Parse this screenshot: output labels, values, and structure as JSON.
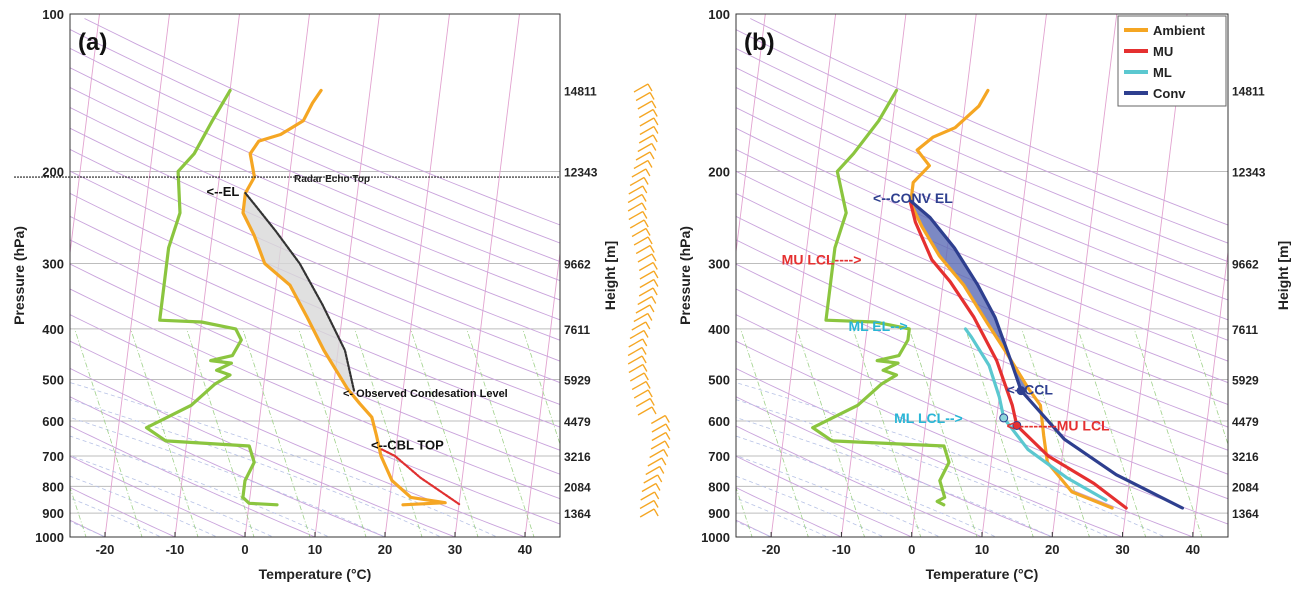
{
  "chart_data": [
    {
      "type": "line",
      "panel_label": "(a)",
      "xlabel": "Temperature (°C)",
      "ylabel": "Pressure (hPa)",
      "y2label": "Height [m]",
      "xlim": [
        -25,
        45
      ],
      "ylim": [
        100,
        1000
      ],
      "y_scale": "log",
      "x_ticks": [
        -20,
        -10,
        0,
        10,
        20,
        30,
        40
      ],
      "y_ticks": [
        100,
        200,
        300,
        400,
        500,
        600,
        700,
        800,
        900,
        1000
      ],
      "height_ticks": [
        {
          "p": 140,
          "label": "14811"
        },
        {
          "p": 200,
          "label": "12343"
        },
        {
          "p": 300,
          "label": "9662"
        },
        {
          "p": 400,
          "label": "7611"
        },
        {
          "p": 500,
          "label": "5929"
        },
        {
          "p": 600,
          "label": "4479"
        },
        {
          "p": 700,
          "label": "3216"
        },
        {
          "p": 800,
          "label": "2084"
        },
        {
          "p": 900,
          "label": "1364"
        }
      ],
      "series": [
        {
          "key": "temperature",
          "color": "#F5A623",
          "points": [
            [
              22,
              868
            ],
            [
              28,
              860
            ],
            [
              23,
              840
            ],
            [
              20,
              780
            ],
            [
              18,
              700
            ],
            [
              17,
              640
            ],
            [
              16,
              590
            ],
            [
              14,
              555
            ],
            [
              12,
              520
            ],
            [
              8,
              440
            ],
            [
              5,
              380
            ],
            [
              2,
              330
            ],
            [
              -2,
              300
            ],
            [
              -4,
              265
            ],
            [
              -6,
              240
            ],
            [
              -6,
              220
            ],
            [
              -5,
              205
            ],
            [
              -6,
              185
            ],
            [
              -5,
              175
            ],
            [
              -2,
              170
            ],
            [
              1,
              160
            ],
            [
              2,
              148
            ],
            [
              3,
              140
            ]
          ]
        },
        {
          "key": "dewpoint",
          "color": "#8BC53F",
          "points": [
            [
              4,
              868
            ],
            [
              0,
              862
            ],
            [
              -1,
              840
            ],
            [
              -1,
              780
            ],
            [
              0,
              720
            ],
            [
              -1,
              670
            ],
            [
              -13,
              655
            ],
            [
              -16,
              618
            ],
            [
              -10,
              560
            ],
            [
              -7,
              510
            ],
            [
              -5,
              490
            ],
            [
              -7,
              480
            ],
            [
              -5,
              465
            ],
            [
              -8,
              460
            ],
            [
              -5,
              450
            ],
            [
              -4,
              420
            ],
            [
              -5,
              400
            ],
            [
              -10,
              388
            ],
            [
              -16,
              385
            ],
            [
              -16,
              340
            ],
            [
              -16,
              280
            ],
            [
              -15,
              240
            ],
            [
              -16,
              200
            ],
            [
              -14,
              185
            ],
            [
              -12,
              160
            ],
            [
              -10,
              140
            ]
          ]
        },
        {
          "key": "parcel",
          "color": "#333333",
          "dashed": true,
          "points": [
            [
              13,
              525
            ],
            [
              11,
              440
            ],
            [
              7,
              360
            ],
            [
              3,
              300
            ],
            [
              -1,
              260
            ],
            [
              -4,
              235
            ],
            [
              -6,
              220
            ]
          ]
        },
        {
          "key": "cbl",
          "color": "#E03030",
          "dashed": true,
          "points": [
            [
              30,
              865
            ],
            [
              24,
              770
            ],
            [
              20,
              700
            ],
            [
              18,
              680
            ]
          ]
        }
      ],
      "shade": {
        "color": "#d8d8d8"
      },
      "annotations": [
        {
          "text": "Radar Echo Top",
          "p": 205,
          "x": 7,
          "color": "#222222",
          "size": 10
        },
        {
          "text": "<--EL",
          "p": 218,
          "x": -5.5,
          "color": "#111111",
          "size": 13
        },
        {
          "text": "<- Observed Condesation Level",
          "p": 528,
          "x": 14,
          "color": "#111111",
          "size": 11
        },
        {
          "text": "<--CBL TOP",
          "p": 665,
          "x": 18,
          "color": "#111111",
          "size": 13
        }
      ],
      "echo_top_p": 205
    },
    {
      "type": "line",
      "panel_label": "(b)",
      "xlabel": "Temperature (°C)",
      "ylabel": "Pressure (hPa)",
      "y2label": "Height [m]",
      "xlim": [
        -25,
        45
      ],
      "ylim": [
        100,
        1000
      ],
      "y_scale": "log",
      "x_ticks": [
        -20,
        -10,
        0,
        10,
        20,
        30,
        40
      ],
      "y_ticks": [
        100,
        200,
        300,
        400,
        500,
        600,
        700,
        800,
        900,
        1000
      ],
      "height_ticks": [
        {
          "p": 140,
          "label": "14811"
        },
        {
          "p": 200,
          "label": "12343"
        },
        {
          "p": 300,
          "label": "9662"
        },
        {
          "p": 400,
          "label": "7611"
        },
        {
          "p": 500,
          "label": "5929"
        },
        {
          "p": 600,
          "label": "4479"
        },
        {
          "p": 700,
          "label": "3216"
        },
        {
          "p": 800,
          "label": "2084"
        },
        {
          "p": 900,
          "label": "1364"
        }
      ],
      "legend": [
        "Ambient",
        "MU",
        "ML",
        "Conv"
      ],
      "legend_position": "top-right",
      "series": [
        {
          "key": "temperature",
          "name": "Ambient",
          "color": "#F5A623",
          "points": [
            [
              28,
              880
            ],
            [
              22,
              820
            ],
            [
              18,
              720
            ],
            [
              17,
              640
            ],
            [
              16,
              560
            ],
            [
              14,
              520
            ],
            [
              10,
              440
            ],
            [
              7,
              390
            ],
            [
              3,
              330
            ],
            [
              -1,
              290
            ],
            [
              -4,
              255
            ],
            [
              -6,
              230
            ],
            [
              -6,
              210
            ],
            [
              -4,
              195
            ],
            [
              -6,
              182
            ],
            [
              -4,
              172
            ],
            [
              -1,
              165
            ],
            [
              2,
              150
            ],
            [
              3,
              140
            ]
          ]
        },
        {
          "key": "dewpoint",
          "color": "#8BC53F",
          "points": [
            [
              4,
              868
            ],
            [
              3,
              855
            ],
            [
              4,
              840
            ],
            [
              3,
              780
            ],
            [
              4,
              720
            ],
            [
              3,
              670
            ],
            [
              -13,
              655
            ],
            [
              -16,
              618
            ],
            [
              -10,
              560
            ],
            [
              -7,
              510
            ],
            [
              -5,
              490
            ],
            [
              -7,
              480
            ],
            [
              -5,
              465
            ],
            [
              -8,
              460
            ],
            [
              -5,
              450
            ],
            [
              -4,
              420
            ],
            [
              -4,
              400
            ],
            [
              -9,
              388
            ],
            [
              -16,
              385
            ],
            [
              -16,
              330
            ],
            [
              -16,
              280
            ],
            [
              -15,
              240
            ],
            [
              -17,
              200
            ],
            [
              -15,
              185
            ],
            [
              -12,
              160
            ],
            [
              -10,
              140
            ]
          ]
        },
        {
          "key": "mu",
          "name": "MU",
          "color": "#E53030",
          "points": [
            [
              30,
              880
            ],
            [
              25,
              790
            ],
            [
              18,
              700
            ],
            [
              13,
              612
            ],
            [
              12,
              560
            ],
            [
              9,
              460
            ],
            [
              5,
              380
            ],
            [
              1,
              325
            ],
            [
              -2,
              295
            ],
            [
              -5,
              250
            ],
            [
              -6,
              230
            ]
          ]
        },
        {
          "key": "ml",
          "name": "ML",
          "color": "#5BC8D0",
          "points": [
            [
              27,
              850
            ],
            [
              21,
              770
            ],
            [
              15,
              680
            ],
            [
              11,
              592
            ],
            [
              10,
              540
            ],
            [
              8,
              470
            ],
            [
              5,
              415
            ],
            [
              4,
              400
            ]
          ]
        },
        {
          "key": "conv",
          "name": "Conv",
          "color": "#2E3F8F",
          "points": [
            [
              38,
              880
            ],
            [
              28,
              760
            ],
            [
              20,
              650
            ],
            [
              13,
              525
            ],
            [
              11,
              460
            ],
            [
              8,
              380
            ],
            [
              5,
              330
            ],
            [
              1,
              280
            ],
            [
              -3,
              245
            ],
            [
              -6,
              228
            ]
          ]
        }
      ],
      "shade": {
        "color": "#5B6BB5"
      },
      "markers": [
        {
          "key": "ccl",
          "x": 13,
          "p": 525,
          "fill": "#2E3F8F"
        },
        {
          "key": "ml-lcl",
          "x": 11,
          "p": 592,
          "fill": "#8FD6DC"
        },
        {
          "key": "mu-lcl",
          "x": 13,
          "p": 612,
          "fill": "#E53030"
        }
      ],
      "annotations": [
        {
          "text": "<--CONV EL",
          "p": 225,
          "x": -5.5,
          "color": "#2E3F8F",
          "size": 14
        },
        {
          "text": "MU LCL---->",
          "p": 295,
          "x": -18.5,
          "color": "#E53030",
          "size": 14
        },
        {
          "text": "ML EL-->",
          "p": 395,
          "x": -9,
          "color": "#29B6D6",
          "size": 14
        },
        {
          "text": "<--CCL",
          "p": 522,
          "x": 13.5,
          "color": "#2E3F8F",
          "size": 14
        },
        {
          "text": "ML LCL-->",
          "p": 592,
          "x": -2.5,
          "color": "#29B6D6",
          "size": 14
        },
        {
          "text": "<---------MU LCL",
          "p": 612,
          "x": 13.5,
          "color": "#E53030",
          "size": 14
        }
      ]
    }
  ]
}
